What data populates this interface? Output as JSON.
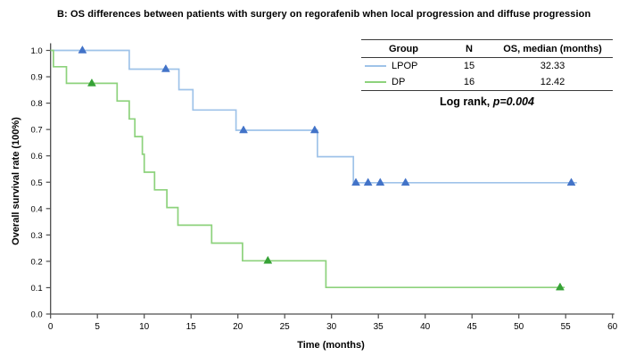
{
  "title": "B: OS differences between patients with surgery on regorafenib when local progression and diffuse progression",
  "chart_data": {
    "type": "line",
    "subtype": "kaplan-meier-step",
    "title": "B: OS differences between patients with surgery on regorafenib when local progression and diffuse progression",
    "xlabel": "Time (months)",
    "ylabel": "Overall survival rate (100%)",
    "xlim": [
      0,
      60
    ],
    "ylim": [
      0.0,
      1.0
    ],
    "x_ticks": [
      0,
      5,
      10,
      15,
      20,
      25,
      30,
      35,
      40,
      45,
      50,
      55,
      60
    ],
    "y_ticks": [
      0.0,
      0.1,
      0.2,
      0.3,
      0.4,
      0.5,
      0.6,
      0.7,
      0.8,
      0.9,
      1.0
    ],
    "grid": false,
    "legend_position": "top-right",
    "series": [
      {
        "name": "LPOP",
        "n": 15,
        "median_os_months": 32.33,
        "line_color": "#9FC3E9",
        "marker_color": "#4273C8",
        "steps": [
          {
            "t": 0,
            "s": 1.0
          },
          {
            "t": 8.4,
            "s": 0.929
          },
          {
            "t": 13.7,
            "s": 0.851
          },
          {
            "t": 15.2,
            "s": 0.774
          },
          {
            "t": 19.8,
            "s": 0.697
          },
          {
            "t": 28.5,
            "s": 0.597
          },
          {
            "t": 32.33,
            "s": 0.498
          }
        ],
        "end_t": 56.2,
        "censor_marks": [
          {
            "t": 3.4,
            "s": 1.0
          },
          {
            "t": 12.3,
            "s": 0.929
          },
          {
            "t": 20.6,
            "s": 0.697
          },
          {
            "t": 28.2,
            "s": 0.697
          },
          {
            "t": 32.6,
            "s": 0.498
          },
          {
            "t": 33.9,
            "s": 0.498
          },
          {
            "t": 35.2,
            "s": 0.498
          },
          {
            "t": 37.9,
            "s": 0.498
          },
          {
            "t": 55.6,
            "s": 0.498
          }
        ]
      },
      {
        "name": "DP",
        "n": 16,
        "median_os_months": 12.42,
        "line_color": "#8DD27C",
        "marker_color": "#36A236",
        "steps": [
          {
            "t": 0,
            "s": 1.0
          },
          {
            "t": 0.3,
            "s": 0.938
          },
          {
            "t": 1.7,
            "s": 0.875
          },
          {
            "t": 7.1,
            "s": 0.808
          },
          {
            "t": 8.4,
            "s": 0.74
          },
          {
            "t": 9.0,
            "s": 0.673
          },
          {
            "t": 9.8,
            "s": 0.606
          },
          {
            "t": 10.0,
            "s": 0.538
          },
          {
            "t": 11.1,
            "s": 0.471
          },
          {
            "t": 12.42,
            "s": 0.404
          },
          {
            "t": 13.6,
            "s": 0.337
          },
          {
            "t": 17.2,
            "s": 0.269
          },
          {
            "t": 20.5,
            "s": 0.202
          },
          {
            "t": 29.4,
            "s": 0.101
          }
        ],
        "end_t": 54.9,
        "censor_marks": [
          {
            "t": 4.4,
            "s": 0.875
          },
          {
            "t": 23.2,
            "s": 0.202
          },
          {
            "t": 54.4,
            "s": 0.101
          }
        ]
      }
    ]
  },
  "legend_table": {
    "headers": [
      "Group",
      "N",
      "OS, median (months)"
    ],
    "rows": [
      {
        "group": "LPOP",
        "n": "15",
        "os_median": "32.33"
      },
      {
        "group": "DP",
        "n": "16",
        "os_median": "12.42"
      }
    ],
    "footer": {
      "label": "Log rank, ",
      "p_value": "p=0.004"
    }
  },
  "colors": {
    "axis": "#4d4d4d",
    "table_rule": "#3a3a3a",
    "lpop_line": "#9FC3E9",
    "lpop_marker": "#4273C8",
    "dp_line": "#8DD27C",
    "dp_marker": "#36A236"
  }
}
